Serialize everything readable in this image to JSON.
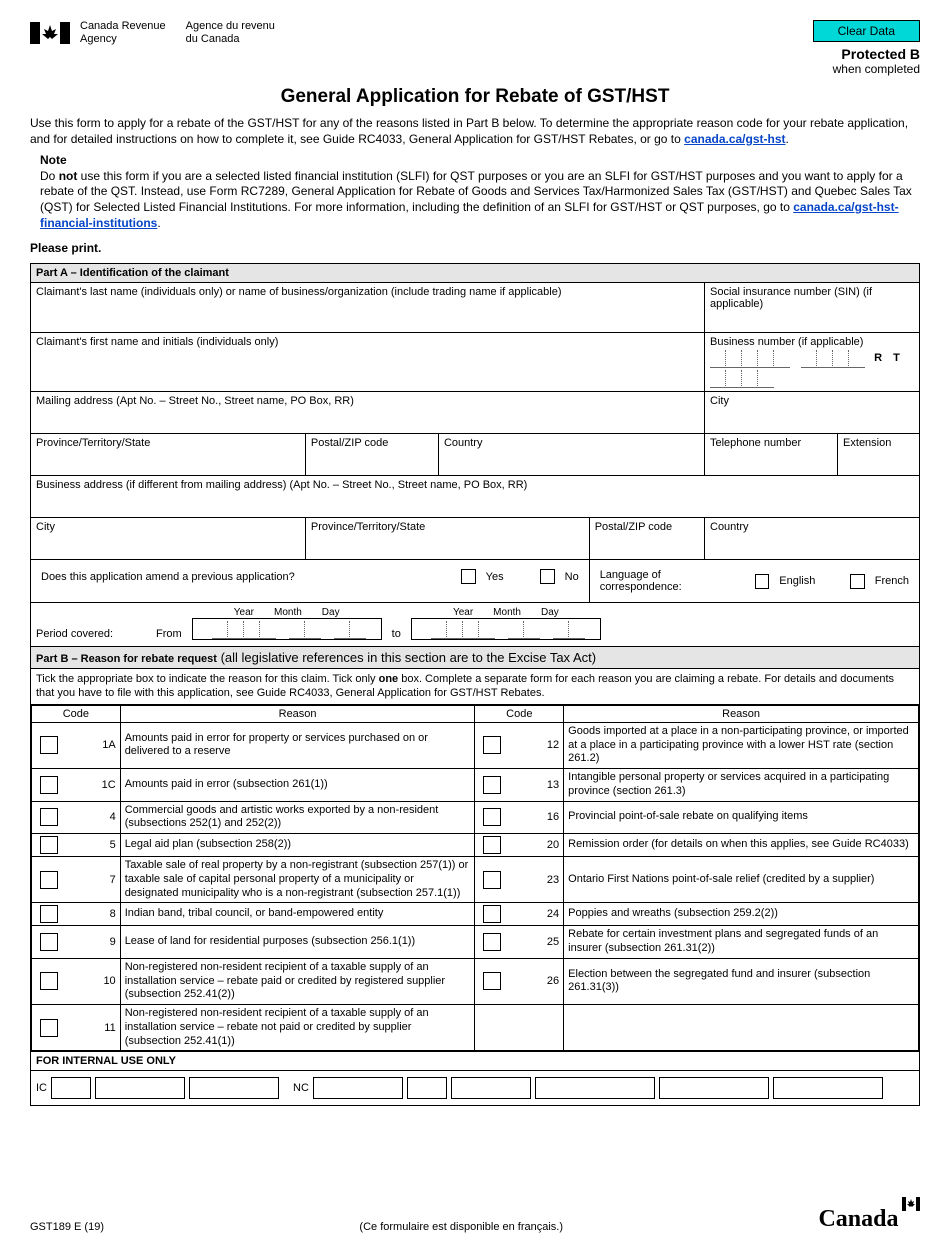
{
  "header": {
    "agency_en_l1": "Canada Revenue",
    "agency_en_l2": "Agency",
    "agency_fr_l1": "Agence du revenu",
    "agency_fr_l2": "du Canada",
    "clear_btn": "Clear Data",
    "protected_lbl": "Protected B",
    "protected_sub": "when completed"
  },
  "title": "General Application for Rebate of GST/HST",
  "intro": {
    "p1a": "Use this form to apply for a rebate of the GST/HST for any of the reasons listed in Part B below. To determine the appropriate reason code for your rebate application, and for detailed instructions on how to complete it, see Guide RC4033, General Application for GST/HST Rebates, or go to ",
    "link1": "canada.ca/gst-hst",
    "p1b": "."
  },
  "note": {
    "label": "Note",
    "body_a": "Do ",
    "not": "not",
    "body_b": " use this form if you are a selected listed financial institution (SLFI) for QST purposes or you are an SLFI for GST/HST purposes and you want to apply for a rebate of the QST. Instead, use Form RC7289, General Application for Rebate of Goods and Services Tax/Harmonized Sales Tax (GST/HST) and Quebec Sales Tax (QST) for Selected Listed Financial Institutions. For more information, including the definition of an SLFI for GST/HST or QST purposes, go to ",
    "link": "canada.ca/gst-hst-financial-institutions",
    "body_c": "."
  },
  "please_print": "Please print.",
  "partA": {
    "title": "Part A – Identification of the claimant",
    "last_name": "Claimant's last name (individuals only) or name of business/organization (include trading name if applicable)",
    "sin": "Social insurance number (SIN) (if applicable)",
    "first_name": "Claimant's first name and initials (individuals only)",
    "bn": "Business number (if applicable)",
    "rt": "R   T",
    "mailing": "Mailing address (Apt No. – Street No., Street name, PO Box, RR)",
    "city": "City",
    "province": "Province/Territory/State",
    "postal": "Postal/ZIP code",
    "country": "Country",
    "telephone": "Telephone number",
    "extension": "Extension",
    "business_addr": "Business address (if different from mailing address)  (Apt No. – Street No., Street name, PO Box, RR)",
    "city2": "City",
    "province2": "Province/Territory/State",
    "postal2": "Postal/ZIP code",
    "country2": "Country",
    "amend_q": "Does this application amend a previous application?",
    "yes": "Yes",
    "no": "No",
    "lang_q": "Language of correspondence:",
    "english": "English",
    "french": "French",
    "period": "Period covered:",
    "from": "From",
    "to": "to",
    "year": "Year",
    "month": "Month",
    "day": "Day"
  },
  "partB": {
    "title": "Part B – Reason for rebate request",
    "title_sub": " (all legislative references in this section are to the Excise Tax Act)",
    "instruction": "Tick the appropriate box to indicate the reason for this claim. Tick only ",
    "one": "one",
    "instruction2": " box. Complete a separate form for each reason you are claiming a rebate. For details and documents that you have to file with this application, see Guide RC4033, General Application for GST/HST Rebates.",
    "col_code": "Code",
    "col_reason": "Reason",
    "reasons_left": [
      {
        "code": "1A",
        "text": "Amounts paid in error for property or services purchased on or delivered to a reserve"
      },
      {
        "code": "1C",
        "text": "Amounts paid in error (subsection 261(1))"
      },
      {
        "code": "4",
        "text": "Commercial goods and artistic works exported by a non-resident (subsections 252(1) and 252(2))"
      },
      {
        "code": "5",
        "text": "Legal aid plan (subsection 258(2))"
      },
      {
        "code": "7",
        "text": "Taxable sale of real property by a non-registrant (subsection 257(1)) or taxable sale of capital personal property of a municipality or designated municipality who is a non-registrant (subsection 257.1(1))"
      },
      {
        "code": "8",
        "text": "Indian band, tribal council, or band-empowered entity"
      },
      {
        "code": "9",
        "text": "Lease of land for residential purposes (subsection 256.1(1))"
      },
      {
        "code": "10",
        "text": "Non-registered non-resident recipient of a taxable supply of an installation service – rebate paid or credited by registered supplier (subsection 252.41(2))"
      },
      {
        "code": "11",
        "text": "Non-registered non-resident recipient of a taxable supply of an installation service – rebate not paid or credited by supplier (subsection 252.41(1))"
      }
    ],
    "reasons_right": [
      {
        "code": "12",
        "text": "Goods imported at a place in a non-participating province, or imported at a place in a participating province with a lower HST rate (section 261.2)"
      },
      {
        "code": "13",
        "text": "Intangible personal property or services acquired in a participating province (section 261.3)"
      },
      {
        "code": "16",
        "text": "Provincial point-of-sale rebate on qualifying items"
      },
      {
        "code": "20",
        "text": "Remission order (for details on when this applies, see Guide RC4033)"
      },
      {
        "code": "23",
        "text": "Ontario First Nations point-of-sale relief (credited by a supplier)"
      },
      {
        "code": "24",
        "text": "Poppies and wreaths (subsection 259.2(2))"
      },
      {
        "code": "25",
        "text": "Rebate for certain investment plans and segregated funds of an insurer (subsection 261.31(2))"
      },
      {
        "code": "26",
        "text": "Election between the segregated fund and insurer (subsection 261.31(3))"
      }
    ],
    "internal": "FOR INTERNAL USE ONLY",
    "ic": "IC",
    "nc": "NC"
  },
  "footer": {
    "form_code": "GST189 E (19)",
    "french_note": "(Ce formulaire est disponible en français.)",
    "wordmark": "Canada"
  },
  "colors": {
    "clear_btn_bg": "#00d7d7",
    "link": "#0645c8",
    "part_header_bg": "#e5e5e5",
    "border": "#000000"
  }
}
